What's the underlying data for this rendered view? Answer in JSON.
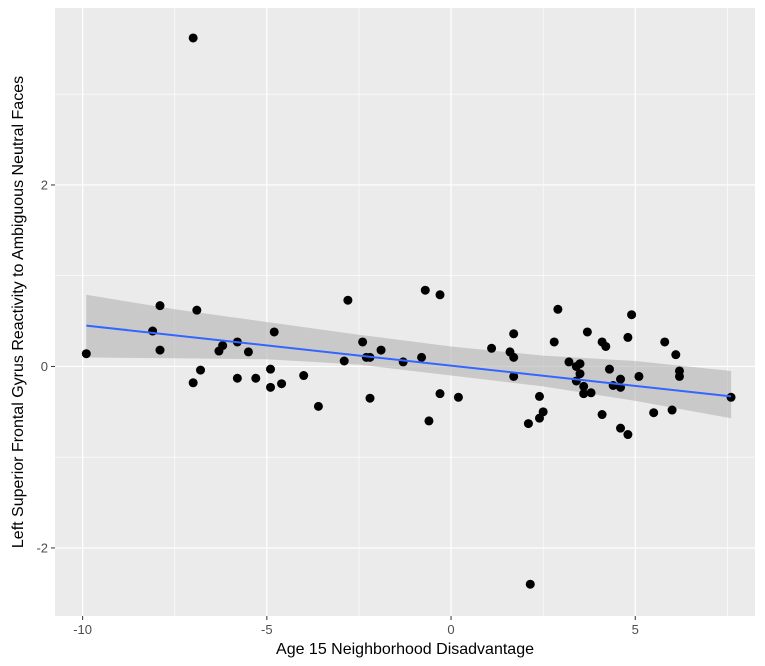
{
  "chart_data": {
    "type": "scatter",
    "xlabel": "Age 15 Neighborhood Disadvantage",
    "ylabel": "Left Superior Frontal Gyrus Reactivity to Ambiguous Neutral Faces",
    "xlim": [
      -10.75,
      8.25
    ],
    "ylim": [
      -2.75,
      3.95
    ],
    "x_ticks": [
      -10,
      -5,
      0,
      5
    ],
    "x_tick_labels": [
      "-10",
      "-5",
      "0",
      "5"
    ],
    "y_ticks": [
      -2,
      0,
      2
    ],
    "y_tick_labels": [
      "-2",
      "0",
      "2"
    ],
    "grid": true,
    "panel_background": "#ebebeb",
    "grid_color": "#ffffff",
    "point_color": "#000000",
    "fit_line_color": "#3366ff",
    "ribbon_color": "#b3b3b3",
    "points": [
      [
        -9.9,
        0.14
      ],
      [
        -8.1,
        0.39
      ],
      [
        -7.9,
        0.67
      ],
      [
        -7.9,
        0.18
      ],
      [
        -7.0,
        3.62
      ],
      [
        -6.9,
        0.62
      ],
      [
        -7.0,
        -0.18
      ],
      [
        -6.8,
        -0.04
      ],
      [
        -6.3,
        0.17
      ],
      [
        -6.2,
        0.23
      ],
      [
        -5.8,
        0.27
      ],
      [
        -5.8,
        -0.13
      ],
      [
        -5.5,
        0.16
      ],
      [
        -5.3,
        -0.13
      ],
      [
        -4.9,
        -0.03
      ],
      [
        -4.9,
        -0.23
      ],
      [
        -4.8,
        0.38
      ],
      [
        -4.6,
        -0.19
      ],
      [
        -4.0,
        -0.1
      ],
      [
        -3.6,
        -0.44
      ],
      [
        -2.9,
        0.06
      ],
      [
        -2.8,
        0.73
      ],
      [
        -2.4,
        0.27
      ],
      [
        -2.3,
        0.1
      ],
      [
        -2.2,
        0.1
      ],
      [
        -2.2,
        -0.35
      ],
      [
        -1.9,
        0.18
      ],
      [
        -1.3,
        0.05
      ],
      [
        -0.8,
        0.1
      ],
      [
        -0.7,
        0.84
      ],
      [
        -0.6,
        -0.6
      ],
      [
        -0.3,
        0.79
      ],
      [
        -0.3,
        -0.3
      ],
      [
        0.2,
        -0.34
      ],
      [
        1.1,
        0.2
      ],
      [
        1.6,
        0.16
      ],
      [
        1.7,
        0.1
      ],
      [
        1.7,
        0.36
      ],
      [
        1.7,
        -0.11
      ],
      [
        2.1,
        -0.63
      ],
      [
        2.15,
        -2.4
      ],
      [
        2.4,
        -0.57
      ],
      [
        2.4,
        -0.33
      ],
      [
        2.5,
        -0.5
      ],
      [
        2.8,
        0.27
      ],
      [
        2.9,
        0.63
      ],
      [
        3.2,
        0.05
      ],
      [
        3.4,
        0.0
      ],
      [
        3.4,
        -0.16
      ],
      [
        3.5,
        0.03
      ],
      [
        3.5,
        -0.08
      ],
      [
        3.6,
        -0.22
      ],
      [
        3.6,
        -0.3
      ],
      [
        3.7,
        0.38
      ],
      [
        3.8,
        -0.29
      ],
      [
        4.1,
        0.27
      ],
      [
        4.1,
        -0.53
      ],
      [
        4.2,
        0.22
      ],
      [
        4.3,
        -0.03
      ],
      [
        4.4,
        -0.21
      ],
      [
        4.6,
        -0.68
      ],
      [
        4.6,
        -0.14
      ],
      [
        4.6,
        -0.23
      ],
      [
        4.8,
        0.32
      ],
      [
        4.8,
        -0.75
      ],
      [
        4.9,
        0.57
      ],
      [
        5.1,
        -0.11
      ],
      [
        5.5,
        -0.51
      ],
      [
        5.8,
        0.27
      ],
      [
        6.0,
        -0.48
      ],
      [
        6.1,
        0.13
      ],
      [
        6.2,
        -0.05
      ],
      [
        6.2,
        -0.11
      ],
      [
        7.6,
        -0.34
      ]
    ],
    "fit_line": {
      "x": [
        -9.9,
        7.6
      ],
      "y": [
        0.45,
        -0.33
      ]
    },
    "confidence_band": {
      "x": [
        -9.9,
        -7.5,
        -5.0,
        -2.5,
        0.0,
        2.5,
        5.0,
        7.6
      ],
      "lower": [
        0.1,
        0.09,
        0.08,
        0.02,
        -0.1,
        -0.22,
        -0.38,
        -0.57
      ],
      "upper": [
        0.79,
        0.63,
        0.49,
        0.35,
        0.22,
        0.12,
        0.06,
        -0.05
      ]
    }
  }
}
